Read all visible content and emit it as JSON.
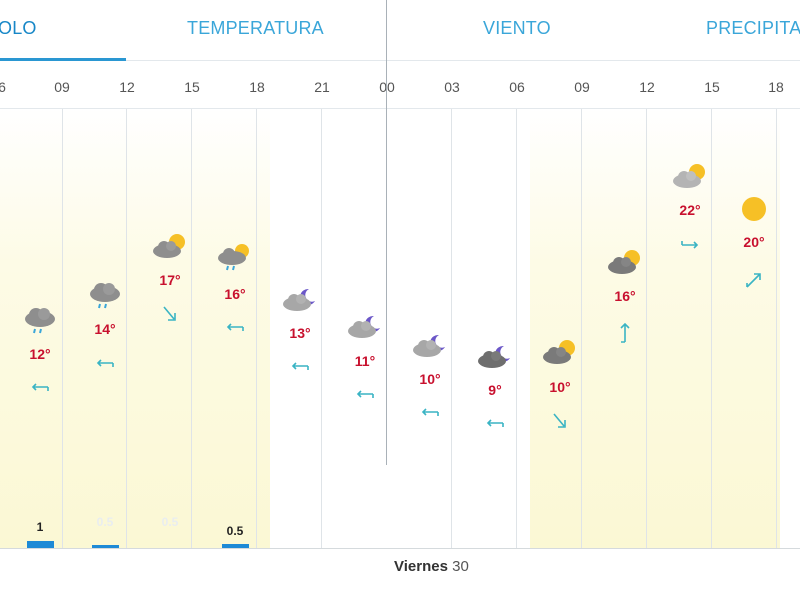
{
  "tabs": [
    {
      "label": "OLO",
      "active": true
    },
    {
      "label": "TEMPERATURA",
      "active": false
    },
    {
      "label": "VIENTO",
      "active": false
    },
    {
      "label": "PRECIPITA",
      "active": false
    }
  ],
  "hours": [
    "6",
    "09",
    "12",
    "15",
    "18",
    "21",
    "00",
    "03",
    "06",
    "09",
    "12",
    "15",
    "18"
  ],
  "day_label": {
    "weekday": "Viernes",
    "day": "30"
  },
  "colors": {
    "accent": "#2a97d2",
    "temp": "#c8102e",
    "wind": "#3ab4c4",
    "rain": "#1e8ad6",
    "sun": "#f6c026",
    "cloud": "#8e8e8e",
    "moon": "#6b57c8",
    "day_band": "#fdfbe4"
  },
  "forecast": [
    {
      "time": "09",
      "icon": "rain-cloud-icon",
      "temp": "12°",
      "wind_dir": "west"
    },
    {
      "time": "12",
      "icon": "rain-cloud-icon",
      "temp": "14°",
      "wind_dir": "west"
    },
    {
      "time": "15",
      "icon": "partly-cloudy-day-icon",
      "temp": "17°",
      "wind_dir": "south-east"
    },
    {
      "time": "18",
      "icon": "partly-cloudy-rain-icon",
      "temp": "16°",
      "wind_dir": "west"
    },
    {
      "time": "21",
      "icon": "partly-cloudy-night-icon",
      "temp": "13°",
      "wind_dir": "west"
    },
    {
      "time": "00",
      "icon": "partly-cloudy-night-icon",
      "temp": "11°",
      "wind_dir": "west"
    },
    {
      "time": "03",
      "icon": "partly-cloudy-night-icon",
      "temp": "10°",
      "wind_dir": "west"
    },
    {
      "time": "06",
      "icon": "partly-cloudy-night-icon",
      "temp": "9°",
      "wind_dir": "west"
    },
    {
      "time": "09",
      "icon": "partly-cloudy-day-icon",
      "temp": "10°",
      "wind_dir": "south-east"
    },
    {
      "time": "12",
      "icon": "partly-cloudy-day-icon",
      "temp": "16°",
      "wind_dir": "north"
    },
    {
      "time": "15",
      "icon": "partly-cloudy-day-icon",
      "temp": "22°",
      "wind_dir": "east"
    },
    {
      "time": "18",
      "icon": "sun-icon",
      "temp": "20°",
      "wind_dir": "north-east"
    }
  ],
  "rain": [
    {
      "label": "1",
      "value": 1
    },
    {
      "label": "0.5",
      "value": 0.5
    },
    {
      "label": "0.5",
      "value": 0.5
    },
    {
      "label": "0.5",
      "value": 0.5
    }
  ]
}
